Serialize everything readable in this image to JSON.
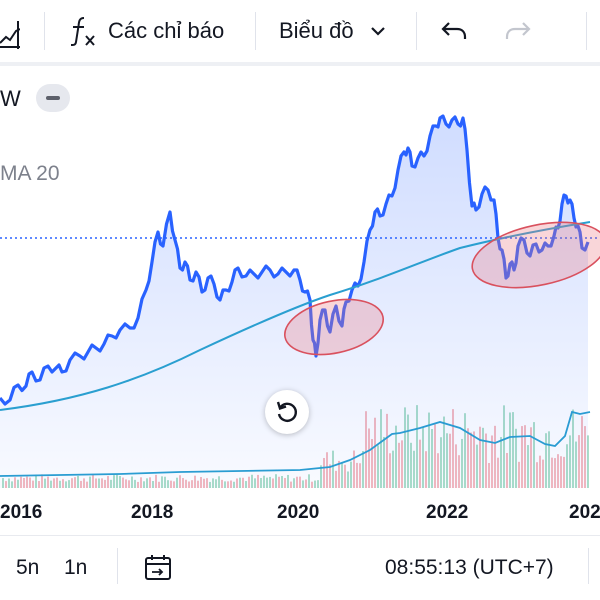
{
  "toolbar": {
    "indicators_label": "Các chỉ báo",
    "chart_type_label": "Biểu đồ"
  },
  "legend": {
    "symbol_tail": "W",
    "ma_label": "MA 20"
  },
  "x_axis": {
    "ticks": [
      "2016",
      "2018",
      "2020",
      "2022",
      "202"
    ]
  },
  "bottom_bar": {
    "range_5y": "5n",
    "range_1y": "1n",
    "clock": "08:55:13 (UTC+7)"
  },
  "colors": {
    "price_line": "#2962ff",
    "ma_line": "#2a9fd0",
    "highlight_ellipse": "#d9515e",
    "volume_up": "#8fd3b6",
    "volume_down": "#f2a1a8"
  },
  "icons": [
    "chart-type-icon",
    "fx-icon",
    "chevron-down-icon",
    "undo-icon",
    "redo-icon",
    "legend-collapse-icon",
    "reset-chart-icon",
    "date-range-icon"
  ]
}
